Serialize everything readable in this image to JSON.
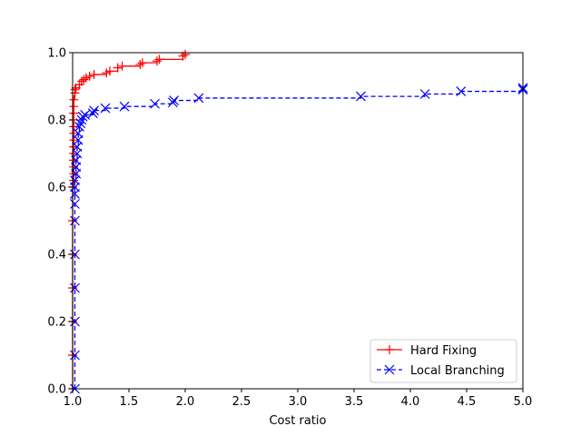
{
  "chart_data": {
    "type": "line",
    "xlabel": "Cost ratio",
    "ylabel": "",
    "xlim": [
      1.0,
      5.0
    ],
    "ylim": [
      0.0,
      1.0
    ],
    "xticks": [
      "1.0",
      "1.5",
      "2.0",
      "2.5",
      "3.0",
      "3.5",
      "4.0",
      "4.5",
      "5.0"
    ],
    "yticks": [
      "0.0",
      "0.2",
      "0.4",
      "0.6",
      "0.8",
      "1.0"
    ],
    "grid": false,
    "legend_position": "lower-right",
    "series": [
      {
        "name": "Hard Fixing",
        "color": "#ff0000",
        "linestyle": "solid",
        "marker": "plus",
        "points": [
          [
            1.0,
            0.0
          ],
          [
            1.0,
            0.1
          ],
          [
            1.0,
            0.2
          ],
          [
            1.0,
            0.3
          ],
          [
            1.0,
            0.4
          ],
          [
            1.0,
            0.5
          ],
          [
            1.0,
            0.6
          ],
          [
            1.01,
            0.62
          ],
          [
            1.01,
            0.64
          ],
          [
            1.01,
            0.66
          ],
          [
            1.01,
            0.68
          ],
          [
            1.01,
            0.7
          ],
          [
            1.01,
            0.72
          ],
          [
            1.01,
            0.74
          ],
          [
            1.01,
            0.76
          ],
          [
            1.01,
            0.78
          ],
          [
            1.01,
            0.8
          ],
          [
            1.01,
            0.82
          ],
          [
            1.01,
            0.84
          ],
          [
            1.01,
            0.86
          ],
          [
            1.02,
            0.88
          ],
          [
            1.02,
            0.89
          ],
          [
            1.03,
            0.895
          ],
          [
            1.06,
            0.905
          ],
          [
            1.08,
            0.915
          ],
          [
            1.1,
            0.92
          ],
          [
            1.12,
            0.925
          ],
          [
            1.15,
            0.93
          ],
          [
            1.19,
            0.935
          ],
          [
            1.3,
            0.94
          ],
          [
            1.33,
            0.945
          ],
          [
            1.4,
            0.955
          ],
          [
            1.44,
            0.96
          ],
          [
            1.6,
            0.965
          ],
          [
            1.62,
            0.97
          ],
          [
            1.75,
            0.975
          ],
          [
            1.77,
            0.98
          ],
          [
            1.98,
            0.99
          ],
          [
            2.0,
            0.995
          ]
        ]
      },
      {
        "name": "Local Branching",
        "color": "#0000ff",
        "linestyle": "dashed",
        "marker": "x",
        "points": [
          [
            1.02,
            0.0
          ],
          [
            1.02,
            0.1
          ],
          [
            1.02,
            0.2
          ],
          [
            1.02,
            0.3
          ],
          [
            1.02,
            0.4
          ],
          [
            1.02,
            0.5
          ],
          [
            1.02,
            0.55
          ],
          [
            1.02,
            0.58
          ],
          [
            1.02,
            0.6
          ],
          [
            1.02,
            0.62
          ],
          [
            1.03,
            0.64
          ],
          [
            1.03,
            0.66
          ],
          [
            1.03,
            0.68
          ],
          [
            1.04,
            0.7
          ],
          [
            1.04,
            0.72
          ],
          [
            1.05,
            0.74
          ],
          [
            1.05,
            0.76
          ],
          [
            1.06,
            0.78
          ],
          [
            1.07,
            0.79
          ],
          [
            1.08,
            0.8
          ],
          [
            1.09,
            0.81
          ],
          [
            1.11,
            0.815
          ],
          [
            1.18,
            0.82
          ],
          [
            1.19,
            0.828
          ],
          [
            1.29,
            0.835
          ],
          [
            1.46,
            0.84
          ],
          [
            1.73,
            0.848
          ],
          [
            1.89,
            0.852
          ],
          [
            1.9,
            0.858
          ],
          [
            2.12,
            0.865
          ],
          [
            3.56,
            0.87
          ],
          [
            4.13,
            0.877
          ],
          [
            4.45,
            0.885
          ],
          [
            5.0,
            0.89
          ],
          [
            5.0,
            0.895
          ]
        ]
      }
    ]
  }
}
